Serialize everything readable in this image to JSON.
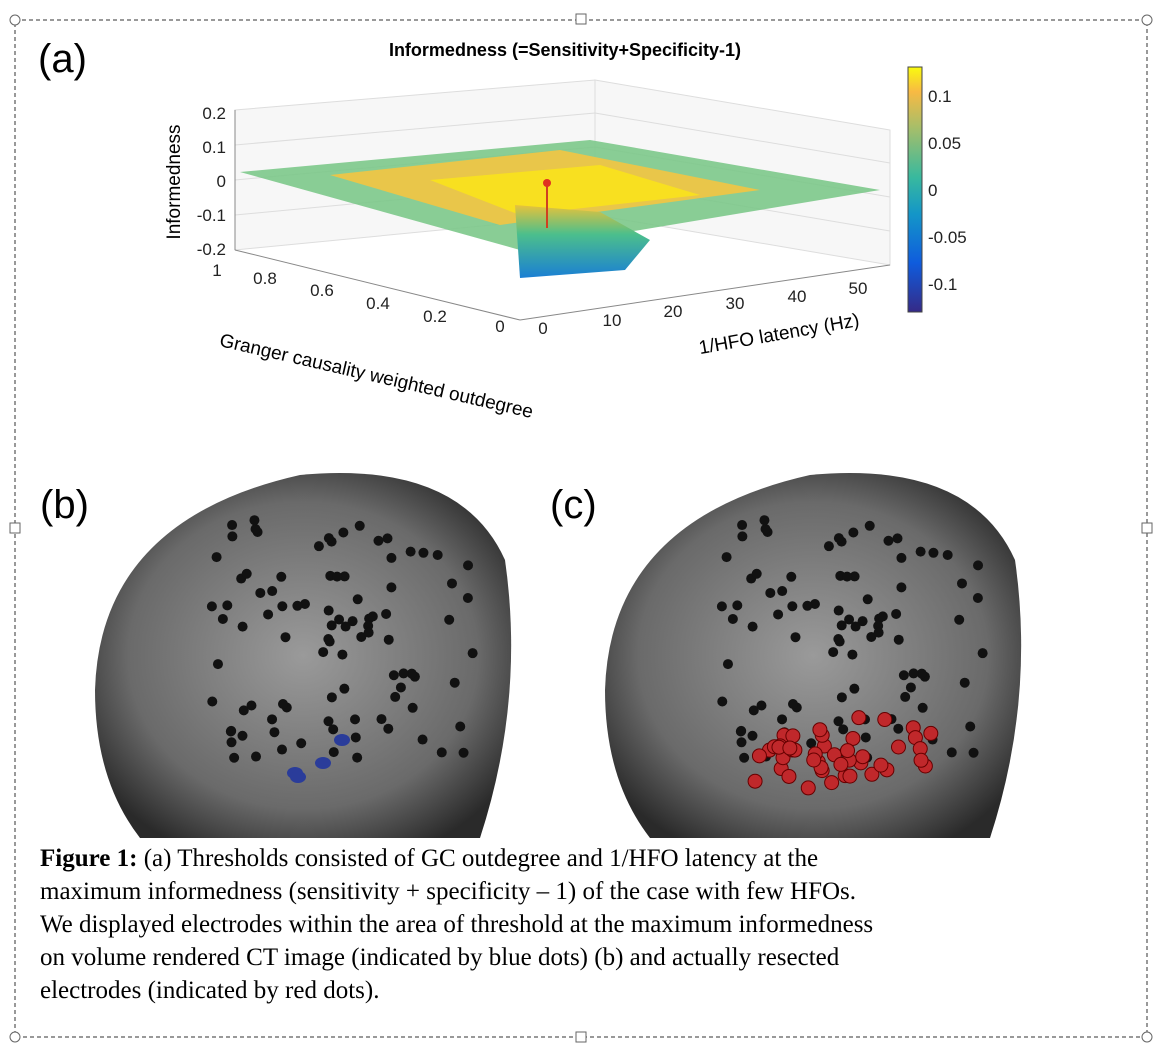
{
  "panel_a": {
    "label": "(a)",
    "title": "Informedness (=Sensitivity+Specificity-1)",
    "z_axis_label": "Informedness",
    "z_ticks": [
      "0.2",
      "0.1",
      "0",
      "-0.1",
      "-0.2"
    ],
    "x_axis_label": "Granger causality weighted outdegree",
    "x_ticks": [
      "1",
      "0.8",
      "0.6",
      "0.4",
      "0.2",
      "0"
    ],
    "y_axis_label": "1/HFO latency (Hz)",
    "y_ticks": [
      "0",
      "10",
      "20",
      "30",
      "40",
      "50"
    ],
    "colorbar_ticks": [
      "0.1",
      "0.05",
      "0",
      "-0.05",
      "-0.1"
    ]
  },
  "panel_b": {
    "label": "(b)"
  },
  "panel_c": {
    "label": "(c)"
  },
  "caption": {
    "label": "Figure 1:",
    "lines": [
      "(a) Thresholds consisted of GC outdegree and 1/HFO latency at the",
      "maximum informedness (sensitivity + specificity – 1) of the case with few HFOs.",
      "We displayed electrodes within the area of threshold at the maximum informedness",
      "on volume rendered CT image (indicated by blue dots) (b) and actually resected",
      "electrodes (indicated by red dots)."
    ]
  }
}
